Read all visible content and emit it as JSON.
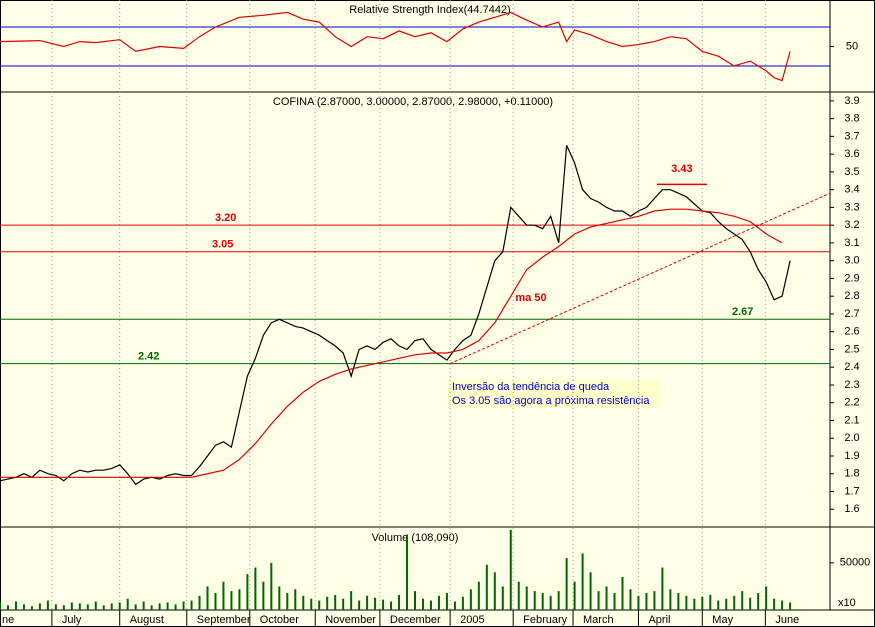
{
  "chart_data": [
    {
      "type": "line",
      "title": "Relative Strength Index(44.7442)",
      "xlim": [
        0,
        104
      ],
      "ylim": [
        3.3,
        97.7
      ],
      "yticks": [
        50
      ],
      "bands": [
        30,
        70
      ],
      "band_color": "#0000cc",
      "series": [
        {
          "color": "#dd0000",
          "x": [
            0,
            5,
            8,
            10,
            12,
            15,
            17,
            20,
            23,
            25,
            27,
            30,
            33,
            36,
            38,
            40,
            42,
            44,
            46,
            48,
            50,
            52,
            54,
            56,
            58,
            60,
            62,
            64,
            66,
            68,
            70,
            71,
            72,
            74,
            76,
            78,
            80,
            82,
            84,
            86,
            88,
            90,
            92,
            94,
            96,
            97,
            98,
            99
          ],
          "values": [
            55,
            56,
            50,
            55,
            54,
            57,
            45,
            50,
            48,
            60,
            70,
            80,
            82,
            85,
            78,
            75,
            60,
            50,
            60,
            58,
            66,
            60,
            64,
            55,
            68,
            75,
            80,
            85,
            77,
            70,
            75,
            55,
            67,
            62,
            55,
            50,
            52,
            55,
            60,
            58,
            45,
            40,
            30,
            35,
            25,
            18,
            15,
            45
          ]
        }
      ]
    },
    {
      "type": "line",
      "subtitle": "COFINA (2.87000, 3.00000, 2.87000, 2.98000, +0.11000)",
      "xlim": [
        0,
        104
      ],
      "ylim": [
        1.5,
        3.95
      ],
      "yticks": [
        1.6,
        1.7,
        1.8,
        1.9,
        {
          "value": 2,
          "label": "2.0"
        },
        2.1,
        2.2,
        2.3,
        2.4,
        2.5,
        2.6,
        2.7,
        2.8,
        2.9,
        {
          "value": 3,
          "label": "3.0"
        },
        3.1,
        3.2,
        3.3,
        3.4,
        3.5,
        3.6,
        3.7,
        3.8,
        3.9
      ],
      "series": [
        {
          "color": "#000000",
          "values": [
            1.76,
            1.77,
            1.78,
            1.8,
            1.78,
            1.82,
            1.8,
            1.79,
            1.76,
            1.8,
            1.82,
            1.81,
            1.82,
            1.82,
            1.83,
            1.85,
            1.8,
            1.74,
            1.77,
            1.78,
            1.77,
            1.79,
            1.8,
            1.79,
            1.79,
            1.84,
            1.9,
            1.96,
            1.98,
            1.95,
            2.15,
            2.35,
            2.45,
            2.58,
            2.65,
            2.67,
            2.65,
            2.63,
            2.62,
            2.6,
            2.58,
            2.55,
            2.52,
            2.48,
            2.35,
            2.5,
            2.52,
            2.5,
            2.54,
            2.56,
            2.52,
            2.5,
            2.55,
            2.56,
            2.5,
            2.47,
            2.44,
            2.5,
            2.55,
            2.58,
            2.7,
            2.85,
            3.0,
            3.05,
            3.3,
            3.25,
            3.2,
            3.2,
            3.18,
            3.25,
            3.1,
            3.65,
            3.55,
            3.4,
            3.35,
            3.33,
            3.3,
            3.28,
            3.28,
            3.25,
            3.28,
            3.3,
            3.35,
            3.4,
            3.4,
            3.38,
            3.36,
            3.32,
            3.28,
            3.27,
            3.22,
            3.18,
            3.15,
            3.12,
            3.05,
            2.95,
            2.88,
            2.78,
            2.8,
            3.0
          ]
        },
        {
          "name": "ma 50",
          "color": "#dd0000",
          "x": [
            0,
            24,
            25,
            28,
            30,
            32,
            34,
            36,
            38,
            40,
            42,
            44,
            46,
            48,
            50,
            52,
            54,
            56,
            58,
            60,
            62,
            64,
            66,
            68,
            70,
            72,
            74,
            76,
            78,
            80,
            82,
            84,
            86,
            88,
            90,
            92,
            94,
            96,
            98
          ],
          "values": [
            1.78,
            1.78,
            1.79,
            1.82,
            1.88,
            1.97,
            2.08,
            2.18,
            2.26,
            2.32,
            2.36,
            2.39,
            2.41,
            2.43,
            2.45,
            2.47,
            2.48,
            2.48,
            2.5,
            2.55,
            2.65,
            2.8,
            2.95,
            3.02,
            3.08,
            3.15,
            3.19,
            3.21,
            3.23,
            3.25,
            3.28,
            3.29,
            3.29,
            3.28,
            3.27,
            3.25,
            3.22,
            3.15,
            3.1
          ]
        }
      ],
      "levels": [
        {
          "value": 3.2,
          "label": "3.20",
          "color": "#dd0000"
        },
        {
          "value": 3.05,
          "label": "3.05",
          "color": "#dd0000"
        },
        {
          "value": 2.67,
          "label": "2.67",
          "color": "#006600"
        },
        {
          "value": 2.42,
          "label": "2.42",
          "color": "#006600"
        }
      ],
      "resistance": {
        "value": 3.43,
        "label": "3.43",
        "from": 82.3,
        "to": 88.6,
        "color": "#dd0000"
      },
      "trendline": {
        "x": [
          56.4,
          104
        ],
        "values": [
          2.42,
          3.38
        ],
        "color": "#dd0000"
      },
      "annotations": [
        "Inversão da tendência de queda",
        "Os 3.05 são agora a próxima resistência"
      ]
    },
    {
      "type": "bar",
      "title": "Volume (108,090)",
      "unit_label": "x10",
      "color": "#006600",
      "xlim": [
        0,
        104
      ],
      "ylim": [
        0,
        88000
      ],
      "yticks": [
        50000
      ],
      "values": [
        8000,
        5000,
        9000,
        6000,
        4000,
        7000,
        10000,
        6000,
        5000,
        8000,
        7000,
        6000,
        9000,
        5000,
        7000,
        8000,
        12000,
        6000,
        9000,
        5000,
        7000,
        8000,
        6000,
        9000,
        10000,
        15000,
        25000,
        18000,
        30000,
        20000,
        22000,
        38000,
        45000,
        30000,
        50000,
        25000,
        18000,
        22000,
        15000,
        12000,
        10000,
        14000,
        16000,
        12000,
        20000,
        10000,
        15000,
        13000,
        11000,
        9000,
        16000,
        80000,
        20000,
        12000,
        10000,
        15000,
        18000,
        9000,
        14000,
        22000,
        30000,
        48000,
        40000,
        25000,
        85000,
        30000,
        25000,
        20000,
        18000,
        15000,
        20000,
        55000,
        30000,
        60000,
        40000,
        20000,
        25000,
        18000,
        35000,
        22000,
        15000,
        18000,
        20000,
        45000,
        22000,
        18000,
        15000,
        12000,
        14000,
        16000,
        10000,
        12000,
        15000,
        20000,
        13000,
        18000,
        25000,
        12000,
        10000,
        8000
      ],
      "xticks": [
        {
          "value": -1,
          "label": "ne"
        },
        {
          "value": 6.5,
          "label": "July"
        },
        {
          "value": 15,
          "label": "August"
        },
        {
          "value": 23.4,
          "label": "September"
        },
        {
          "value": 31.3,
          "label": "October"
        },
        {
          "value": 39.5,
          "label": "November"
        },
        {
          "value": 47.6,
          "label": "December"
        },
        {
          "value": 56.4,
          "label": "2005"
        },
        {
          "value": 64.3,
          "label": "February"
        },
        {
          "value": 71.8,
          "label": "March"
        },
        {
          "value": 80,
          "label": "April"
        },
        {
          "value": 88,
          "label": "May"
        },
        {
          "value": 95.9,
          "label": "June"
        }
      ]
    }
  ]
}
